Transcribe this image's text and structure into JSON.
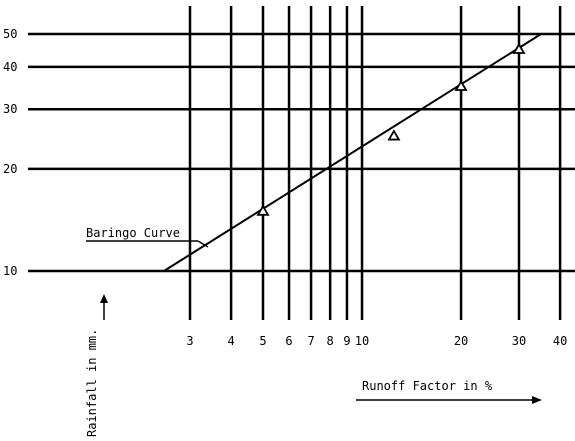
{
  "chart_data": {
    "type": "line",
    "x_scale": "log",
    "y_scale": "log",
    "xlabel": "Runoff Factor in %",
    "ylabel": "Rainfall in mm.",
    "xlim": [
      2.2,
      45
    ],
    "ylim": [
      10,
      55
    ],
    "x_ticks": [
      3,
      4,
      5,
      6,
      7,
      8,
      9,
      10,
      20,
      30,
      40
    ],
    "x_tick_labels": [
      "3",
      "4",
      "5",
      "6",
      "7",
      "8",
      "9",
      "10",
      "20",
      "30",
      "40"
    ],
    "y_ticks": [
      10,
      20,
      30,
      40,
      50
    ],
    "y_tick_labels": [
      "10",
      "20",
      "30",
      "40",
      "50"
    ],
    "grid": true,
    "series": [
      {
        "name": "Baringo Curve",
        "x": [
          2.5,
          35
        ],
        "y": [
          10,
          50
        ]
      }
    ],
    "points": [
      {
        "x": 5,
        "y": 15
      },
      {
        "x": 12.5,
        "y": 25
      },
      {
        "x": 20,
        "y": 35
      },
      {
        "x": 30,
        "y": 45
      }
    ],
    "annotation": "Baringo Curve"
  }
}
